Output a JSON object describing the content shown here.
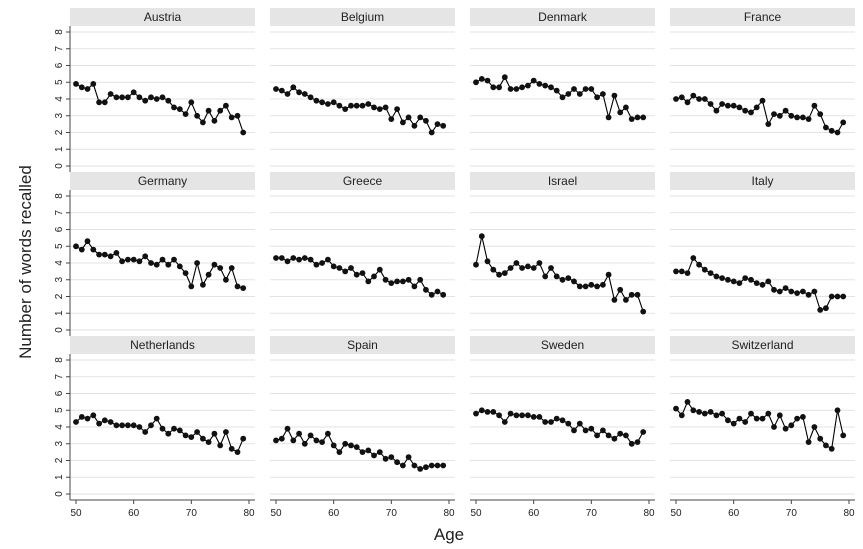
{
  "chart_data": {
    "type": "line",
    "title": "",
    "xlabel": "Age",
    "ylabel": "Number of words recalled",
    "xlim": [
      50,
      80
    ],
    "ylim": [
      0,
      8
    ],
    "x_ticks": [
      "50",
      "60",
      "70",
      "80"
    ],
    "y_ticks": [
      "0",
      "1",
      "2",
      "3",
      "4",
      "5",
      "6",
      "7",
      "8"
    ],
    "grid": true,
    "colors": {
      "line": "#000000",
      "marker": "#111111",
      "strip": "#e5e5e5",
      "grid": "#e3e3e3",
      "axis": "#444444"
    },
    "panels": [
      {
        "name": "Austria",
        "x": [
          50,
          51,
          52,
          53,
          54,
          55,
          56,
          57,
          58,
          59,
          60,
          61,
          62,
          63,
          64,
          65,
          66,
          67,
          68,
          69,
          70,
          71,
          72,
          73,
          74,
          75,
          76,
          77,
          78,
          79
        ],
        "y": [
          4.9,
          4.7,
          4.6,
          4.9,
          3.8,
          3.8,
          4.3,
          4.1,
          4.1,
          4.1,
          4.4,
          4.1,
          3.9,
          4.1,
          4.0,
          4.1,
          3.9,
          3.5,
          3.4,
          3.1,
          3.8,
          3.0,
          2.6,
          3.3,
          2.7,
          3.3,
          3.6,
          2.9,
          3.0,
          2.0
        ]
      },
      {
        "name": "Belgium",
        "x": [
          50,
          51,
          52,
          53,
          54,
          55,
          56,
          57,
          58,
          59,
          60,
          61,
          62,
          63,
          64,
          65,
          66,
          67,
          68,
          69,
          70,
          71,
          72,
          73,
          74,
          75,
          76,
          77,
          78,
          79
        ],
        "y": [
          4.6,
          4.5,
          4.3,
          4.7,
          4.4,
          4.3,
          4.1,
          3.9,
          3.8,
          3.7,
          3.8,
          3.6,
          3.4,
          3.6,
          3.6,
          3.6,
          3.7,
          3.5,
          3.4,
          3.5,
          2.8,
          3.4,
          2.6,
          2.9,
          2.4,
          2.9,
          2.7,
          2.0,
          2.5,
          2.4
        ]
      },
      {
        "name": "Denmark",
        "x": [
          50,
          51,
          52,
          53,
          54,
          55,
          56,
          57,
          58,
          59,
          60,
          61,
          62,
          63,
          64,
          65,
          66,
          67,
          68,
          69,
          70,
          71,
          72,
          73,
          74,
          75,
          76,
          77,
          78,
          79
        ],
        "y": [
          5.0,
          5.2,
          5.1,
          4.7,
          4.7,
          5.3,
          4.6,
          4.6,
          4.7,
          4.8,
          5.1,
          4.9,
          4.8,
          4.7,
          4.5,
          4.1,
          4.3,
          4.6,
          4.3,
          4.6,
          4.6,
          4.1,
          4.3,
          2.9,
          4.2,
          3.2,
          3.5,
          2.8,
          2.9,
          2.9
        ]
      },
      {
        "name": "France",
        "x": [
          50,
          51,
          52,
          53,
          54,
          55,
          56,
          57,
          58,
          59,
          60,
          61,
          62,
          63,
          64,
          65,
          66,
          67,
          68,
          69,
          70,
          71,
          72,
          73,
          74,
          75,
          76,
          77,
          78,
          79
        ],
        "y": [
          4.0,
          4.1,
          3.8,
          4.2,
          4.0,
          4.0,
          3.7,
          3.3,
          3.7,
          3.6,
          3.6,
          3.5,
          3.3,
          3.2,
          3.5,
          3.9,
          2.5,
          3.1,
          3.0,
          3.3,
          3.0,
          2.9,
          2.9,
          2.8,
          3.6,
          3.1,
          2.3,
          2.1,
          2.0,
          2.6
        ]
      },
      {
        "name": "Germany",
        "x": [
          50,
          51,
          52,
          53,
          54,
          55,
          56,
          57,
          58,
          59,
          60,
          61,
          62,
          63,
          64,
          65,
          66,
          67,
          68,
          69,
          70,
          71,
          72,
          73,
          74,
          75,
          76,
          77,
          78,
          79
        ],
        "y": [
          5.0,
          4.8,
          5.3,
          4.8,
          4.5,
          4.5,
          4.4,
          4.6,
          4.1,
          4.2,
          4.2,
          4.1,
          4.4,
          4.0,
          3.9,
          4.2,
          3.9,
          4.2,
          3.8,
          3.4,
          2.6,
          4.0,
          2.7,
          3.3,
          3.9,
          3.7,
          3.0,
          3.7,
          2.6,
          2.5
        ]
      },
      {
        "name": "Greece",
        "x": [
          50,
          51,
          52,
          53,
          54,
          55,
          56,
          57,
          58,
          59,
          60,
          61,
          62,
          63,
          64,
          65,
          66,
          67,
          68,
          69,
          70,
          71,
          72,
          73,
          74,
          75,
          76,
          77,
          78,
          79
        ],
        "y": [
          4.3,
          4.3,
          4.1,
          4.3,
          4.2,
          4.3,
          4.2,
          3.9,
          4.0,
          4.2,
          3.8,
          3.7,
          3.5,
          3.7,
          3.3,
          3.4,
          2.9,
          3.2,
          3.6,
          3.0,
          2.8,
          2.9,
          2.9,
          3.0,
          2.6,
          3.0,
          2.4,
          2.1,
          2.3,
          2.1
        ]
      },
      {
        "name": "Israel",
        "x": [
          50,
          51,
          52,
          53,
          54,
          55,
          56,
          57,
          58,
          59,
          60,
          61,
          62,
          63,
          64,
          65,
          66,
          67,
          68,
          69,
          70,
          71,
          72,
          73,
          74,
          75,
          76,
          77,
          78,
          79
        ],
        "y": [
          3.9,
          5.6,
          4.1,
          3.6,
          3.3,
          3.4,
          3.7,
          4.0,
          3.7,
          3.8,
          3.7,
          4.0,
          3.2,
          3.7,
          3.2,
          3.0,
          3.1,
          2.9,
          2.6,
          2.6,
          2.7,
          2.6,
          2.7,
          3.3,
          1.8,
          2.4,
          1.8,
          2.1,
          2.1,
          1.1
        ]
      },
      {
        "name": "Italy",
        "x": [
          50,
          51,
          52,
          53,
          54,
          55,
          56,
          57,
          58,
          59,
          60,
          61,
          62,
          63,
          64,
          65,
          66,
          67,
          68,
          69,
          70,
          71,
          72,
          73,
          74,
          75,
          76,
          77,
          78,
          79
        ],
        "y": [
          3.5,
          3.5,
          3.4,
          4.3,
          3.9,
          3.6,
          3.4,
          3.2,
          3.1,
          3.0,
          2.9,
          2.8,
          3.1,
          3.0,
          2.8,
          2.7,
          2.9,
          2.4,
          2.3,
          2.5,
          2.3,
          2.2,
          2.3,
          2.1,
          2.3,
          1.2,
          1.3,
          2.0,
          2.0,
          2.0
        ]
      },
      {
        "name": "Netherlands",
        "x": [
          50,
          51,
          52,
          53,
          54,
          55,
          56,
          57,
          58,
          59,
          60,
          61,
          62,
          63,
          64,
          65,
          66,
          67,
          68,
          69,
          70,
          71,
          72,
          73,
          74,
          75,
          76,
          77,
          78,
          79
        ],
        "y": [
          4.3,
          4.6,
          4.5,
          4.7,
          4.2,
          4.4,
          4.3,
          4.1,
          4.1,
          4.1,
          4.1,
          4.0,
          3.7,
          4.1,
          4.5,
          3.9,
          3.6,
          3.9,
          3.8,
          3.5,
          3.4,
          3.7,
          3.3,
          3.1,
          3.6,
          2.9,
          3.7,
          2.7,
          2.5,
          3.3
        ]
      },
      {
        "name": "Spain",
        "x": [
          50,
          51,
          52,
          53,
          54,
          55,
          56,
          57,
          58,
          59,
          60,
          61,
          62,
          63,
          64,
          65,
          66,
          67,
          68,
          69,
          70,
          71,
          72,
          73,
          74,
          75,
          76,
          77,
          78,
          79
        ],
        "y": [
          3.2,
          3.3,
          3.9,
          3.2,
          3.6,
          3.0,
          3.5,
          3.2,
          3.1,
          3.6,
          2.9,
          2.5,
          3.0,
          2.9,
          2.8,
          2.5,
          2.6,
          2.3,
          2.5,
          2.1,
          2.2,
          1.9,
          1.7,
          2.2,
          1.7,
          1.5,
          1.6,
          1.7,
          1.7,
          1.7
        ]
      },
      {
        "name": "Sweden",
        "x": [
          50,
          51,
          52,
          53,
          54,
          55,
          56,
          57,
          58,
          59,
          60,
          61,
          62,
          63,
          64,
          65,
          66,
          67,
          68,
          69,
          70,
          71,
          72,
          73,
          74,
          75,
          76,
          77,
          78,
          79
        ],
        "y": [
          4.8,
          5.0,
          4.9,
          4.9,
          4.7,
          4.3,
          4.8,
          4.7,
          4.7,
          4.7,
          4.6,
          4.6,
          4.3,
          4.3,
          4.5,
          4.4,
          4.2,
          3.8,
          4.2,
          3.8,
          3.9,
          3.5,
          3.8,
          3.5,
          3.3,
          3.6,
          3.5,
          3.0,
          3.1,
          3.7
        ]
      },
      {
        "name": "Switzerland",
        "x": [
          50,
          51,
          52,
          53,
          54,
          55,
          56,
          57,
          58,
          59,
          60,
          61,
          62,
          63,
          64,
          65,
          66,
          67,
          68,
          69,
          70,
          71,
          72,
          73,
          74,
          75,
          76,
          77,
          78,
          79
        ],
        "y": [
          5.1,
          4.7,
          5.5,
          5.0,
          4.9,
          4.8,
          4.9,
          4.7,
          4.8,
          4.4,
          4.2,
          4.5,
          4.3,
          4.8,
          4.5,
          4.5,
          4.8,
          4.0,
          4.7,
          3.9,
          4.1,
          4.5,
          4.6,
          3.1,
          4.0,
          3.3,
          2.9,
          2.7,
          5.0,
          3.5
        ]
      }
    ]
  }
}
